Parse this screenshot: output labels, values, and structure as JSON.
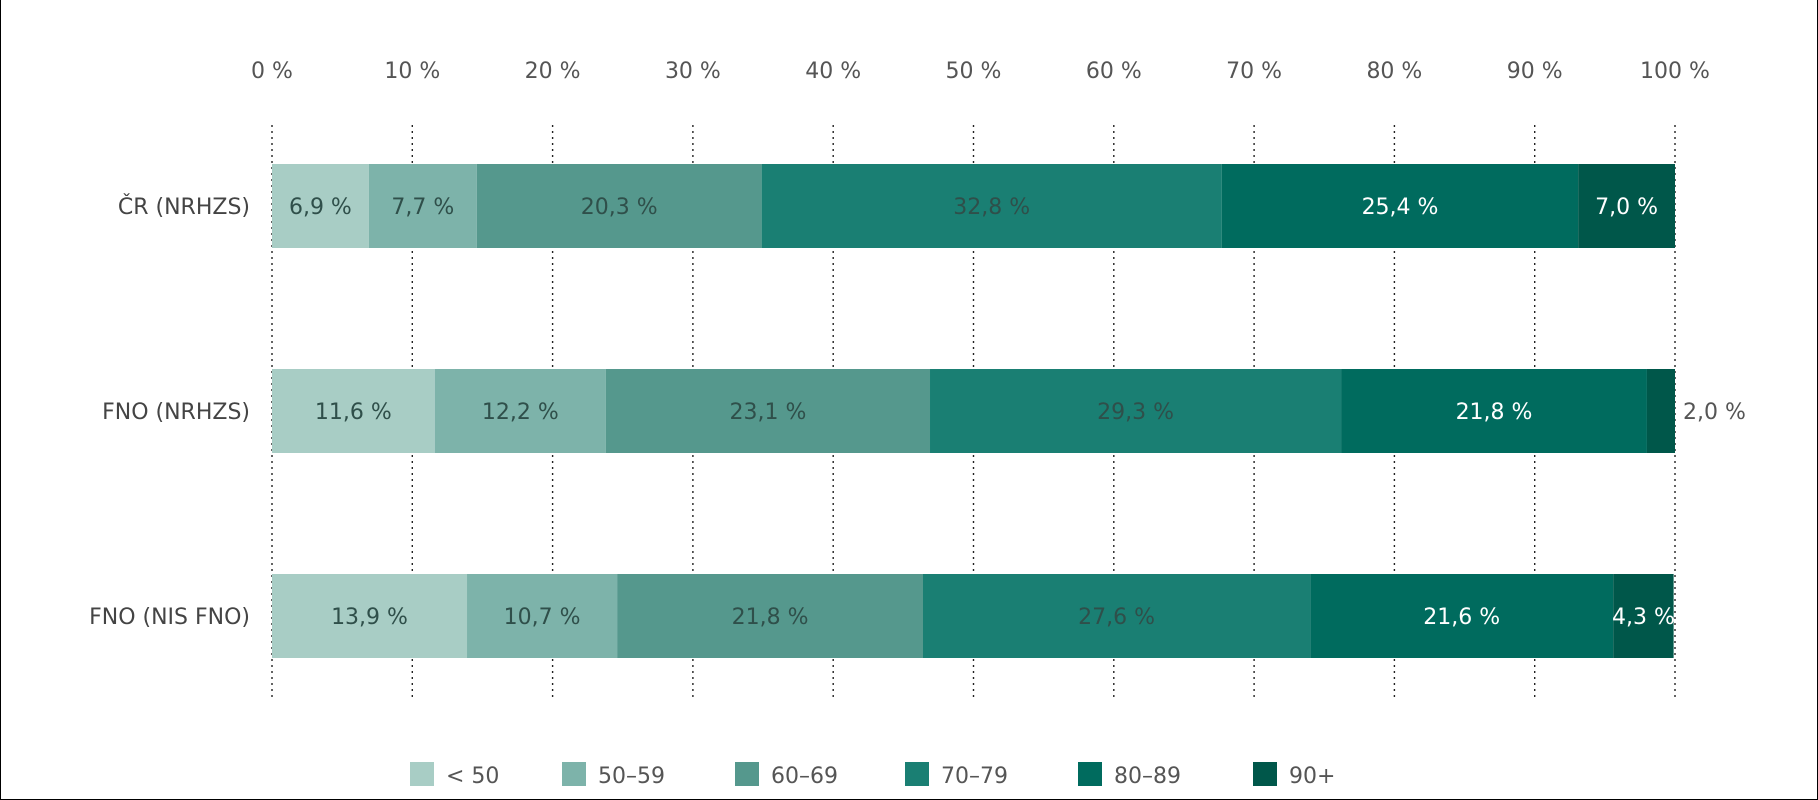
{
  "chart_data": {
    "type": "bar",
    "orientation": "horizontal",
    "stacked": true,
    "categories": [
      "ČR (NRHZS)",
      "FNO (NRHZS)",
      "FNO (NIS FNO)"
    ],
    "x_ticks": [
      "0 %",
      "10 %",
      "20 %",
      "30 %",
      "40 %",
      "50 %",
      "60 %",
      "70 %",
      "80 %",
      "90 %",
      "100 %"
    ],
    "xlim": [
      0,
      100
    ],
    "x_axis_position": "top",
    "grid": "dotted vertical",
    "legend_position": "bottom",
    "series": [
      {
        "name": "< 50",
        "color": "#a8cdc5",
        "values": [
          6.9,
          11.6,
          13.9
        ],
        "labels": [
          "6,9 %",
          "11,6 %",
          "13,9 %"
        ]
      },
      {
        "name": "50–59",
        "color": "#7db3aa",
        "values": [
          7.7,
          12.2,
          10.7
        ],
        "labels": [
          "7,7 %",
          "12,2 %",
          "10,7 %"
        ]
      },
      {
        "name": "60–69",
        "color": "#55988d",
        "values": [
          20.3,
          23.1,
          21.8
        ],
        "labels": [
          "20,3 %",
          "23,1 %",
          "21,8 %"
        ]
      },
      {
        "name": "70–79",
        "color": "#1a7f73",
        "values": [
          32.8,
          29.3,
          27.6
        ],
        "labels": [
          "32,8 %",
          "29,3 %",
          "27,6 %"
        ]
      },
      {
        "name": "80–89",
        "color": "#006b5e",
        "values": [
          25.4,
          21.8,
          21.6
        ],
        "labels": [
          "25,4 %",
          "21,8 %",
          "21,6 %"
        ]
      },
      {
        "name": "90+",
        "color": "#00574a",
        "values": [
          7.0,
          2.0,
          4.3
        ],
        "labels": [
          "7,0 %",
          "2,0 %",
          "4,3 %"
        ]
      }
    ]
  }
}
